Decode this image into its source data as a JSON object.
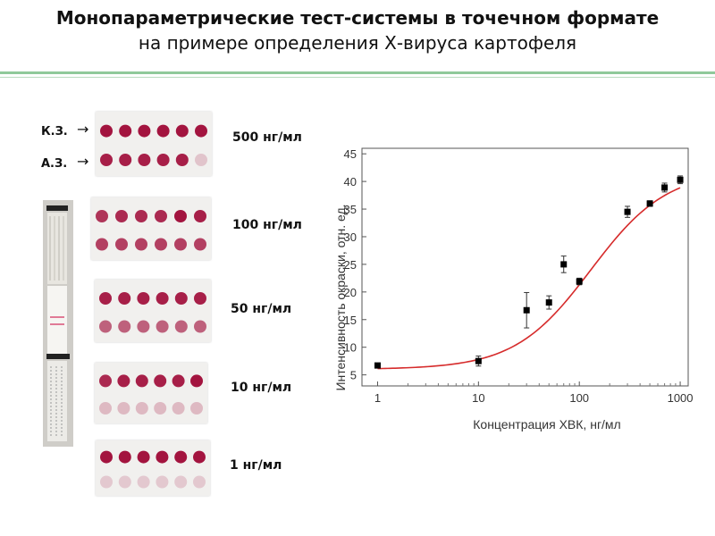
{
  "header": {
    "title": "Монопараметрические тест-системы в точечном формате",
    "subtitle": "на примере определения Х-вируса картофеля"
  },
  "zones": {
    "control": "К.З.",
    "analytical": "А.З."
  },
  "panels": [
    {
      "label": "500 нг/мл",
      "top_intensity": [
        1,
        1,
        1,
        1,
        1,
        1
      ],
      "bottom_intensity": [
        0.95,
        0.95,
        0.95,
        0.95,
        0.95,
        0.2
      ]
    },
    {
      "label": "100 нг/мл",
      "top_intensity": [
        0.85,
        0.9,
        0.9,
        0.9,
        1,
        0.95
      ],
      "bottom_intensity": [
        0.8,
        0.8,
        0.8,
        0.8,
        0.8,
        0.8
      ]
    },
    {
      "label": "50 нг/мл",
      "top_intensity": [
        0.95,
        0.95,
        0.95,
        0.95,
        0.95,
        0.95
      ],
      "bottom_intensity": [
        0.65,
        0.65,
        0.65,
        0.65,
        0.65,
        0.65
      ]
    },
    {
      "label": "10 нг/мл",
      "top_intensity": [
        0.9,
        0.95,
        0.95,
        0.95,
        0.95,
        1
      ],
      "bottom_intensity": [
        0.25,
        0.25,
        0.25,
        0.25,
        0.25,
        0.25
      ]
    },
    {
      "label": "1 нг/мл",
      "top_intensity": [
        1,
        1,
        1,
        1,
        1,
        1
      ],
      "bottom_intensity": [
        0.18,
        0.18,
        0.18,
        0.18,
        0.18,
        0.18
      ]
    }
  ],
  "colors": {
    "dot": "#a3143f",
    "fit_line": "#d62b2b",
    "marker": "#000000"
  },
  "chart_data": {
    "type": "scatter",
    "xlabel": "Концентрация ХВК, нг/мл",
    "ylabel": "Интенсивность окраски, отн. ед.",
    "x_scale": "log",
    "xlim": [
      0.7,
      1200
    ],
    "ylim": [
      3,
      46
    ],
    "x_ticks": [
      1,
      10,
      100,
      1000
    ],
    "x_tick_labels": [
      "1",
      "10",
      "100",
      "1000"
    ],
    "y_ticks": [
      5,
      10,
      15,
      20,
      25,
      30,
      35,
      40,
      45
    ],
    "y_tick_labels": [
      "5",
      "10",
      "15",
      "20",
      "25",
      "30",
      "35",
      "40",
      "45"
    ],
    "grid": false,
    "points": [
      {
        "x": 1,
        "y": 6.7,
        "err": 0.3
      },
      {
        "x": 10,
        "y": 7.5,
        "err": 0.9
      },
      {
        "x": 30,
        "y": 16.7,
        "err": 3.2
      },
      {
        "x": 50,
        "y": 18.1,
        "err": 1.2
      },
      {
        "x": 70,
        "y": 25.0,
        "err": 1.5
      },
      {
        "x": 100,
        "y": 21.9,
        "err": 0.6
      },
      {
        "x": 300,
        "y": 34.5,
        "err": 1.0
      },
      {
        "x": 500,
        "y": 36.0,
        "err": 0.5
      },
      {
        "x": 700,
        "y": 38.9,
        "err": 0.8
      },
      {
        "x": 1000,
        "y": 40.3,
        "err": 0.7
      }
    ],
    "fit": {
      "bottom": 6.0,
      "top": 42.0,
      "ec50": 130,
      "hill": 1.15
    }
  }
}
